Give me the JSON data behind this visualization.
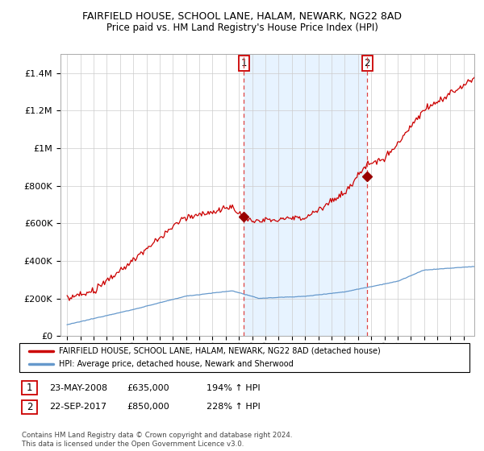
{
  "title": "FAIRFIELD HOUSE, SCHOOL LANE, HALAM, NEWARK, NG22 8AD",
  "subtitle": "Price paid vs. HM Land Registry's House Price Index (HPI)",
  "legend_entry1": "FAIRFIELD HOUSE, SCHOOL LANE, HALAM, NEWARK, NG22 8AD (detached house)",
  "legend_entry2": "HPI: Average price, detached house, Newark and Sherwood",
  "sale1_date_str": "23-MAY-2008",
  "sale1_price_str": "£635,000",
  "sale1_hpi_str": "194% ↑ HPI",
  "sale2_date_str": "22-SEP-2017",
  "sale2_price_str": "£850,000",
  "sale2_hpi_str": "228% ↑ HPI",
  "footer": "Contains HM Land Registry data © Crown copyright and database right 2024.\nThis data is licensed under the Open Government Licence v3.0.",
  "line1_color": "#cc0000",
  "line2_color": "#6699cc",
  "vline_color": "#dd4444",
  "shade_color": "#ddeeff",
  "marker_color": "#990000",
  "sale1_year": 2008.375,
  "sale1_val": 635000,
  "sale2_year": 2017.708,
  "sale2_val": 850000,
  "ylim_max": 1500000,
  "xlim_min": 1994.5,
  "xlim_max": 2025.8,
  "background_color": "#ffffff",
  "grid_color": "#cccccc",
  "title_fontsize": 9,
  "subtitle_fontsize": 8.5
}
